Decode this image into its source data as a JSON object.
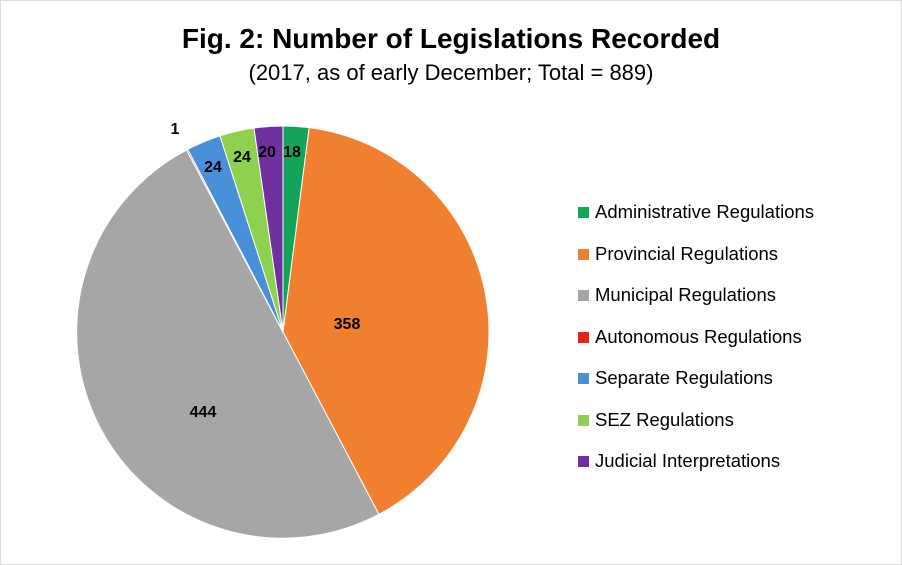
{
  "chart_data": {
    "type": "pie",
    "title": "Fig. 2: Number of Legislations Recorded",
    "subtitle": "(2017, as of early December; Total = 889)",
    "legend_position": "right",
    "start_angle_deg": 0,
    "direction": "clockwise",
    "slices": [
      {
        "name": "Administrative Regulations",
        "value": 18,
        "color": "#13A45A",
        "label": "18"
      },
      {
        "name": "Provincial Regulations",
        "value": 358,
        "color": "#F07F30",
        "label": "358"
      },
      {
        "name": "Municipal Regulations",
        "value": 444,
        "color": "#A6A6A6",
        "label": "444"
      },
      {
        "name": "Autonomous Regulations",
        "value": 1,
        "color": "#E5231A",
        "label": "1"
      },
      {
        "name": "Separate Regulations",
        "value": 24,
        "color": "#4A90D9",
        "label": "24"
      },
      {
        "name": "SEZ Regulations",
        "value": 24,
        "color": "#8DD14F",
        "label": "24"
      },
      {
        "name": "Judicial Interpretations",
        "value": 20,
        "color": "#7030A0",
        "label": "20"
      }
    ]
  }
}
